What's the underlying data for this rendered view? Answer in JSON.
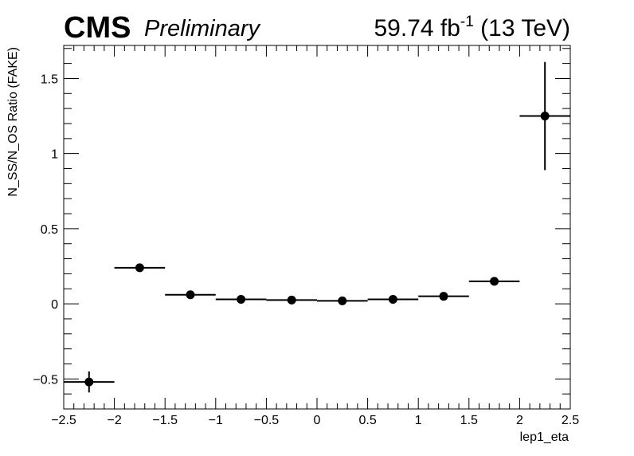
{
  "header": {
    "experiment": "CMS",
    "status": "Preliminary",
    "lumi_value": "59.74 fb",
    "lumi_exp": "-1",
    "energy": " (13 TeV)"
  },
  "chart_data": {
    "type": "scatter",
    "xlabel": "lep1_eta",
    "ylabel": "N_SS/N_OS Ratio (FAKE)",
    "xlim": [
      -2.5,
      2.5
    ],
    "ylim": [
      -0.7,
      1.72
    ],
    "x_ticks": [
      -2.5,
      -2,
      -1.5,
      -1,
      -0.5,
      0,
      0.5,
      1,
      1.5,
      2,
      2.5
    ],
    "x_tick_labels": [
      "−2.5",
      "−2",
      "−1.5",
      "−1",
      "−0.5",
      "0",
      "0.5",
      "1",
      "1.5",
      "2",
      "2.5"
    ],
    "y_ticks": [
      -0.5,
      0,
      0.5,
      1,
      1.5
    ],
    "y_tick_labels": [
      "−0.5",
      "0",
      "0.5",
      "1",
      "1.5"
    ],
    "grid": false,
    "points": [
      {
        "x": -2.25,
        "y": -0.52,
        "xerr": 0.25,
        "yerr_low": 0.07,
        "yerr_high": 0.07
      },
      {
        "x": -1.75,
        "y": 0.24,
        "xerr": 0.25,
        "yerr_low": 0.01,
        "yerr_high": 0.01
      },
      {
        "x": -1.25,
        "y": 0.06,
        "xerr": 0.25,
        "yerr_low": 0.005,
        "yerr_high": 0.005
      },
      {
        "x": -0.75,
        "y": 0.03,
        "xerr": 0.25,
        "yerr_low": 0.005,
        "yerr_high": 0.005
      },
      {
        "x": -0.25,
        "y": 0.025,
        "xerr": 0.25,
        "yerr_low": 0.005,
        "yerr_high": 0.005
      },
      {
        "x": 0.25,
        "y": 0.02,
        "xerr": 0.25,
        "yerr_low": 0.005,
        "yerr_high": 0.005
      },
      {
        "x": 0.75,
        "y": 0.03,
        "xerr": 0.25,
        "yerr_low": 0.005,
        "yerr_high": 0.005
      },
      {
        "x": 1.25,
        "y": 0.05,
        "xerr": 0.25,
        "yerr_low": 0.005,
        "yerr_high": 0.005
      },
      {
        "x": 1.75,
        "y": 0.15,
        "xerr": 0.25,
        "yerr_low": 0.01,
        "yerr_high": 0.01
      },
      {
        "x": 2.25,
        "y": 1.25,
        "xerr": 0.25,
        "yerr_low": 0.36,
        "yerr_high": 0.36
      }
    ],
    "marker_color": "#000000"
  }
}
